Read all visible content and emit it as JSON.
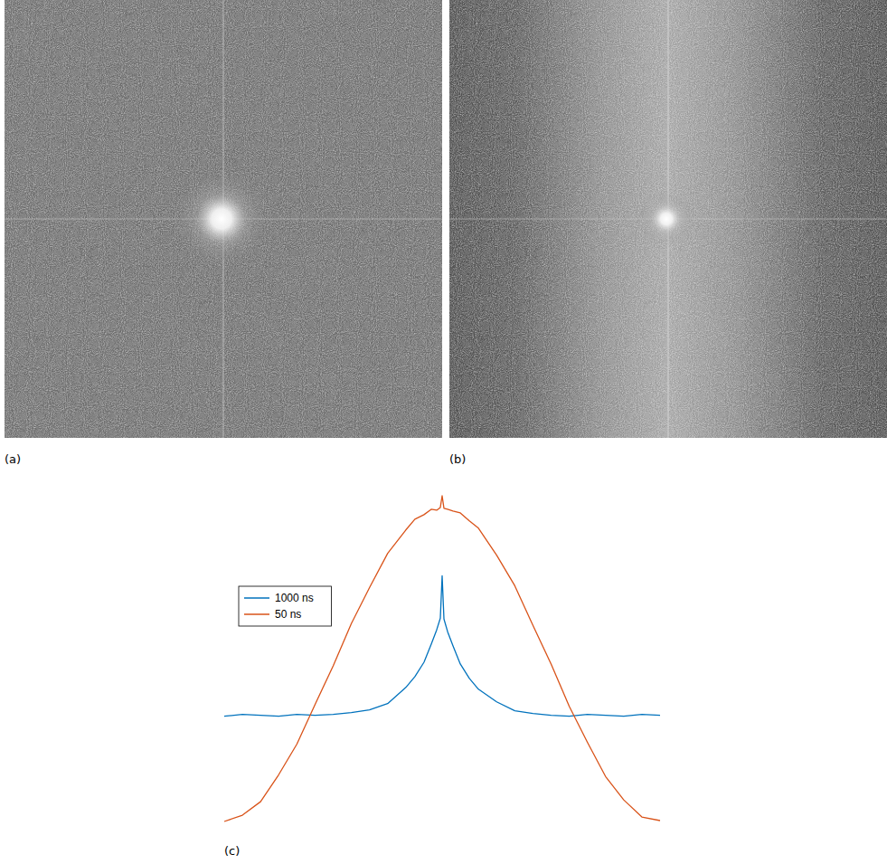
{
  "panels": [
    {
      "label": "(a)"
    },
    {
      "label": "(b)"
    }
  ],
  "chart_data": {
    "type": "line",
    "panel_label": "(c)",
    "tick_labels": false,
    "legend": "top-left",
    "x": [
      0,
      20,
      40,
      60,
      80,
      100,
      120,
      140,
      160,
      180,
      200,
      210,
      220,
      228,
      234,
      238,
      240,
      242,
      246,
      252,
      260,
      270,
      280,
      300,
      320,
      340,
      360,
      380,
      400,
      420,
      440,
      460,
      480
    ],
    "series": [
      {
        "name": "1000 ns",
        "color": "#0072bd",
        "values": [
          117,
          119,
          118,
          117,
          119,
          118,
          119,
          121,
          124,
          131,
          149,
          161,
          177,
          197,
          213,
          226,
          273,
          225,
          211,
          195,
          175,
          159,
          147,
          133,
          123,
          120,
          118,
          117,
          119,
          118,
          117,
          119,
          118
        ]
      },
      {
        "name": "50 ns",
        "color": "#d95319",
        "values": [
          0,
          7,
          22,
          52,
          86,
          130,
          173,
          220,
          260,
          298,
          324,
          336,
          341,
          347,
          346,
          349,
          362,
          348,
          347,
          345,
          343,
          334,
          326,
          296,
          262,
          218,
          175,
          128,
          88,
          50,
          24,
          5,
          1
        ]
      }
    ]
  }
}
